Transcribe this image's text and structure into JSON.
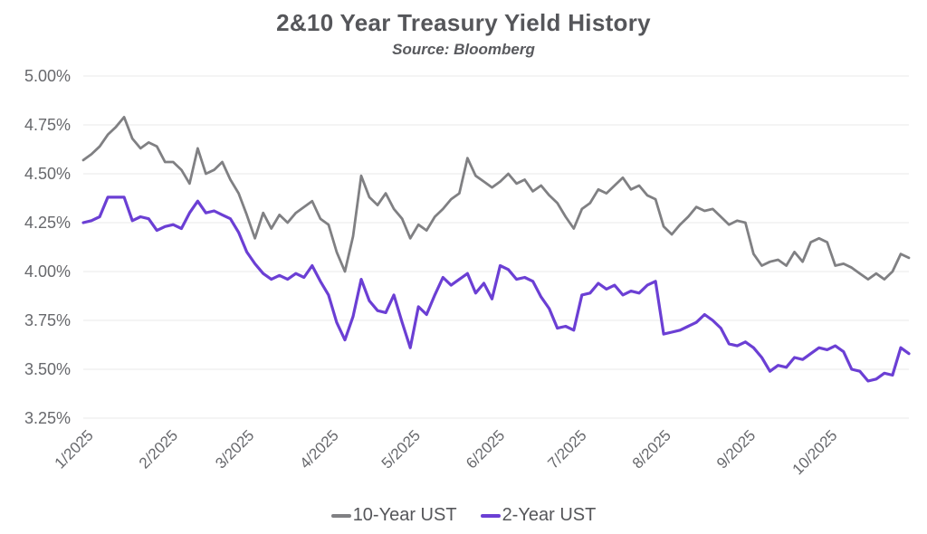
{
  "header": {
    "title": "2&10 Year Treasury Yield History",
    "subtitle": "Source: Bloomberg"
  },
  "colors": {
    "background": "#ffffff",
    "title_text": "#55565a",
    "subtitle_text": "#58595d",
    "axis_text": "#67686c",
    "gridline": "#e8e8ea",
    "legend_text": "#55565a",
    "ten_year_line": "#808083",
    "two_year_line": "#6b3fd4"
  },
  "chart_data": {
    "type": "line",
    "title": "2&10 Year Treasury Yield History",
    "subtitle": "Source: Bloomberg",
    "xlabel": "",
    "ylabel": "",
    "grid": "horizontal",
    "legend_position": "bottom-center",
    "ylim": [
      3.25,
      5.0
    ],
    "y_ticks": [
      {
        "value": 5.0,
        "label": "5.00%"
      },
      {
        "value": 4.75,
        "label": "4.75%"
      },
      {
        "value": 4.5,
        "label": "4.50%"
      },
      {
        "value": 4.25,
        "label": "4.25%"
      },
      {
        "value": 4.0,
        "label": "4.00%"
      },
      {
        "value": 3.75,
        "label": "3.75%"
      },
      {
        "value": 3.5,
        "label": "3.50%"
      },
      {
        "value": 3.25,
        "label": "3.25%"
      }
    ],
    "x_span_days": 303,
    "sample_step_days": 3,
    "x_ticks": [
      {
        "day": 0,
        "label": "1/2025"
      },
      {
        "day": 31,
        "label": "2/2025"
      },
      {
        "day": 59,
        "label": "3/2025"
      },
      {
        "day": 90,
        "label": "4/2025"
      },
      {
        "day": 120,
        "label": "5/2025"
      },
      {
        "day": 151,
        "label": "6/2025"
      },
      {
        "day": 181,
        "label": "7/2025"
      },
      {
        "day": 212,
        "label": "8/2025"
      },
      {
        "day": 243,
        "label": "9/2025"
      },
      {
        "day": 273,
        "label": "10/2025"
      }
    ],
    "series": [
      {
        "name": "10-Year UST",
        "color": "#808083",
        "stroke_width": 2.8,
        "values": [
          4.57,
          4.6,
          4.64,
          4.7,
          4.74,
          4.79,
          4.68,
          4.63,
          4.66,
          4.64,
          4.56,
          4.56,
          4.52,
          4.45,
          4.63,
          4.5,
          4.52,
          4.56,
          4.47,
          4.4,
          4.29,
          4.17,
          4.3,
          4.22,
          4.29,
          4.25,
          4.3,
          4.33,
          4.36,
          4.27,
          4.24,
          4.1,
          4.0,
          4.18,
          4.49,
          4.38,
          4.34,
          4.4,
          4.32,
          4.27,
          4.17,
          4.24,
          4.21,
          4.28,
          4.32,
          4.37,
          4.4,
          4.58,
          4.49,
          4.46,
          4.43,
          4.46,
          4.5,
          4.45,
          4.47,
          4.41,
          4.44,
          4.39,
          4.35,
          4.28,
          4.22,
          4.32,
          4.35,
          4.42,
          4.4,
          4.44,
          4.48,
          4.42,
          4.44,
          4.39,
          4.37,
          4.23,
          4.19,
          4.24,
          4.28,
          4.33,
          4.31,
          4.32,
          4.28,
          4.24,
          4.26,
          4.25,
          4.09,
          4.03,
          4.05,
          4.06,
          4.03,
          4.1,
          4.05,
          4.15,
          4.17,
          4.15,
          4.03,
          4.04,
          4.02,
          3.99,
          3.96,
          3.99,
          3.96,
          4.0,
          4.09,
          4.07
        ]
      },
      {
        "name": "2-Year UST",
        "color": "#6b3fd4",
        "stroke_width": 3.2,
        "values": [
          4.25,
          4.26,
          4.28,
          4.38,
          4.38,
          4.38,
          4.26,
          4.28,
          4.27,
          4.21,
          4.23,
          4.24,
          4.22,
          4.3,
          4.36,
          4.3,
          4.31,
          4.29,
          4.27,
          4.2,
          4.1,
          4.04,
          3.99,
          3.96,
          3.98,
          3.96,
          3.99,
          3.97,
          4.03,
          3.95,
          3.88,
          3.74,
          3.65,
          3.77,
          3.96,
          3.85,
          3.8,
          3.79,
          3.88,
          3.74,
          3.61,
          3.82,
          3.78,
          3.88,
          3.97,
          3.93,
          3.96,
          3.99,
          3.89,
          3.94,
          3.86,
          4.03,
          4.01,
          3.96,
          3.97,
          3.95,
          3.87,
          3.81,
          3.71,
          3.72,
          3.7,
          3.88,
          3.89,
          3.94,
          3.91,
          3.93,
          3.88,
          3.9,
          3.89,
          3.93,
          3.95,
          3.68,
          3.69,
          3.7,
          3.72,
          3.74,
          3.78,
          3.75,
          3.71,
          3.63,
          3.62,
          3.64,
          3.61,
          3.56,
          3.49,
          3.52,
          3.51,
          3.56,
          3.55,
          3.58,
          3.61,
          3.6,
          3.62,
          3.59,
          3.5,
          3.49,
          3.44,
          3.45,
          3.48,
          3.47,
          3.61,
          3.58
        ]
      }
    ]
  }
}
